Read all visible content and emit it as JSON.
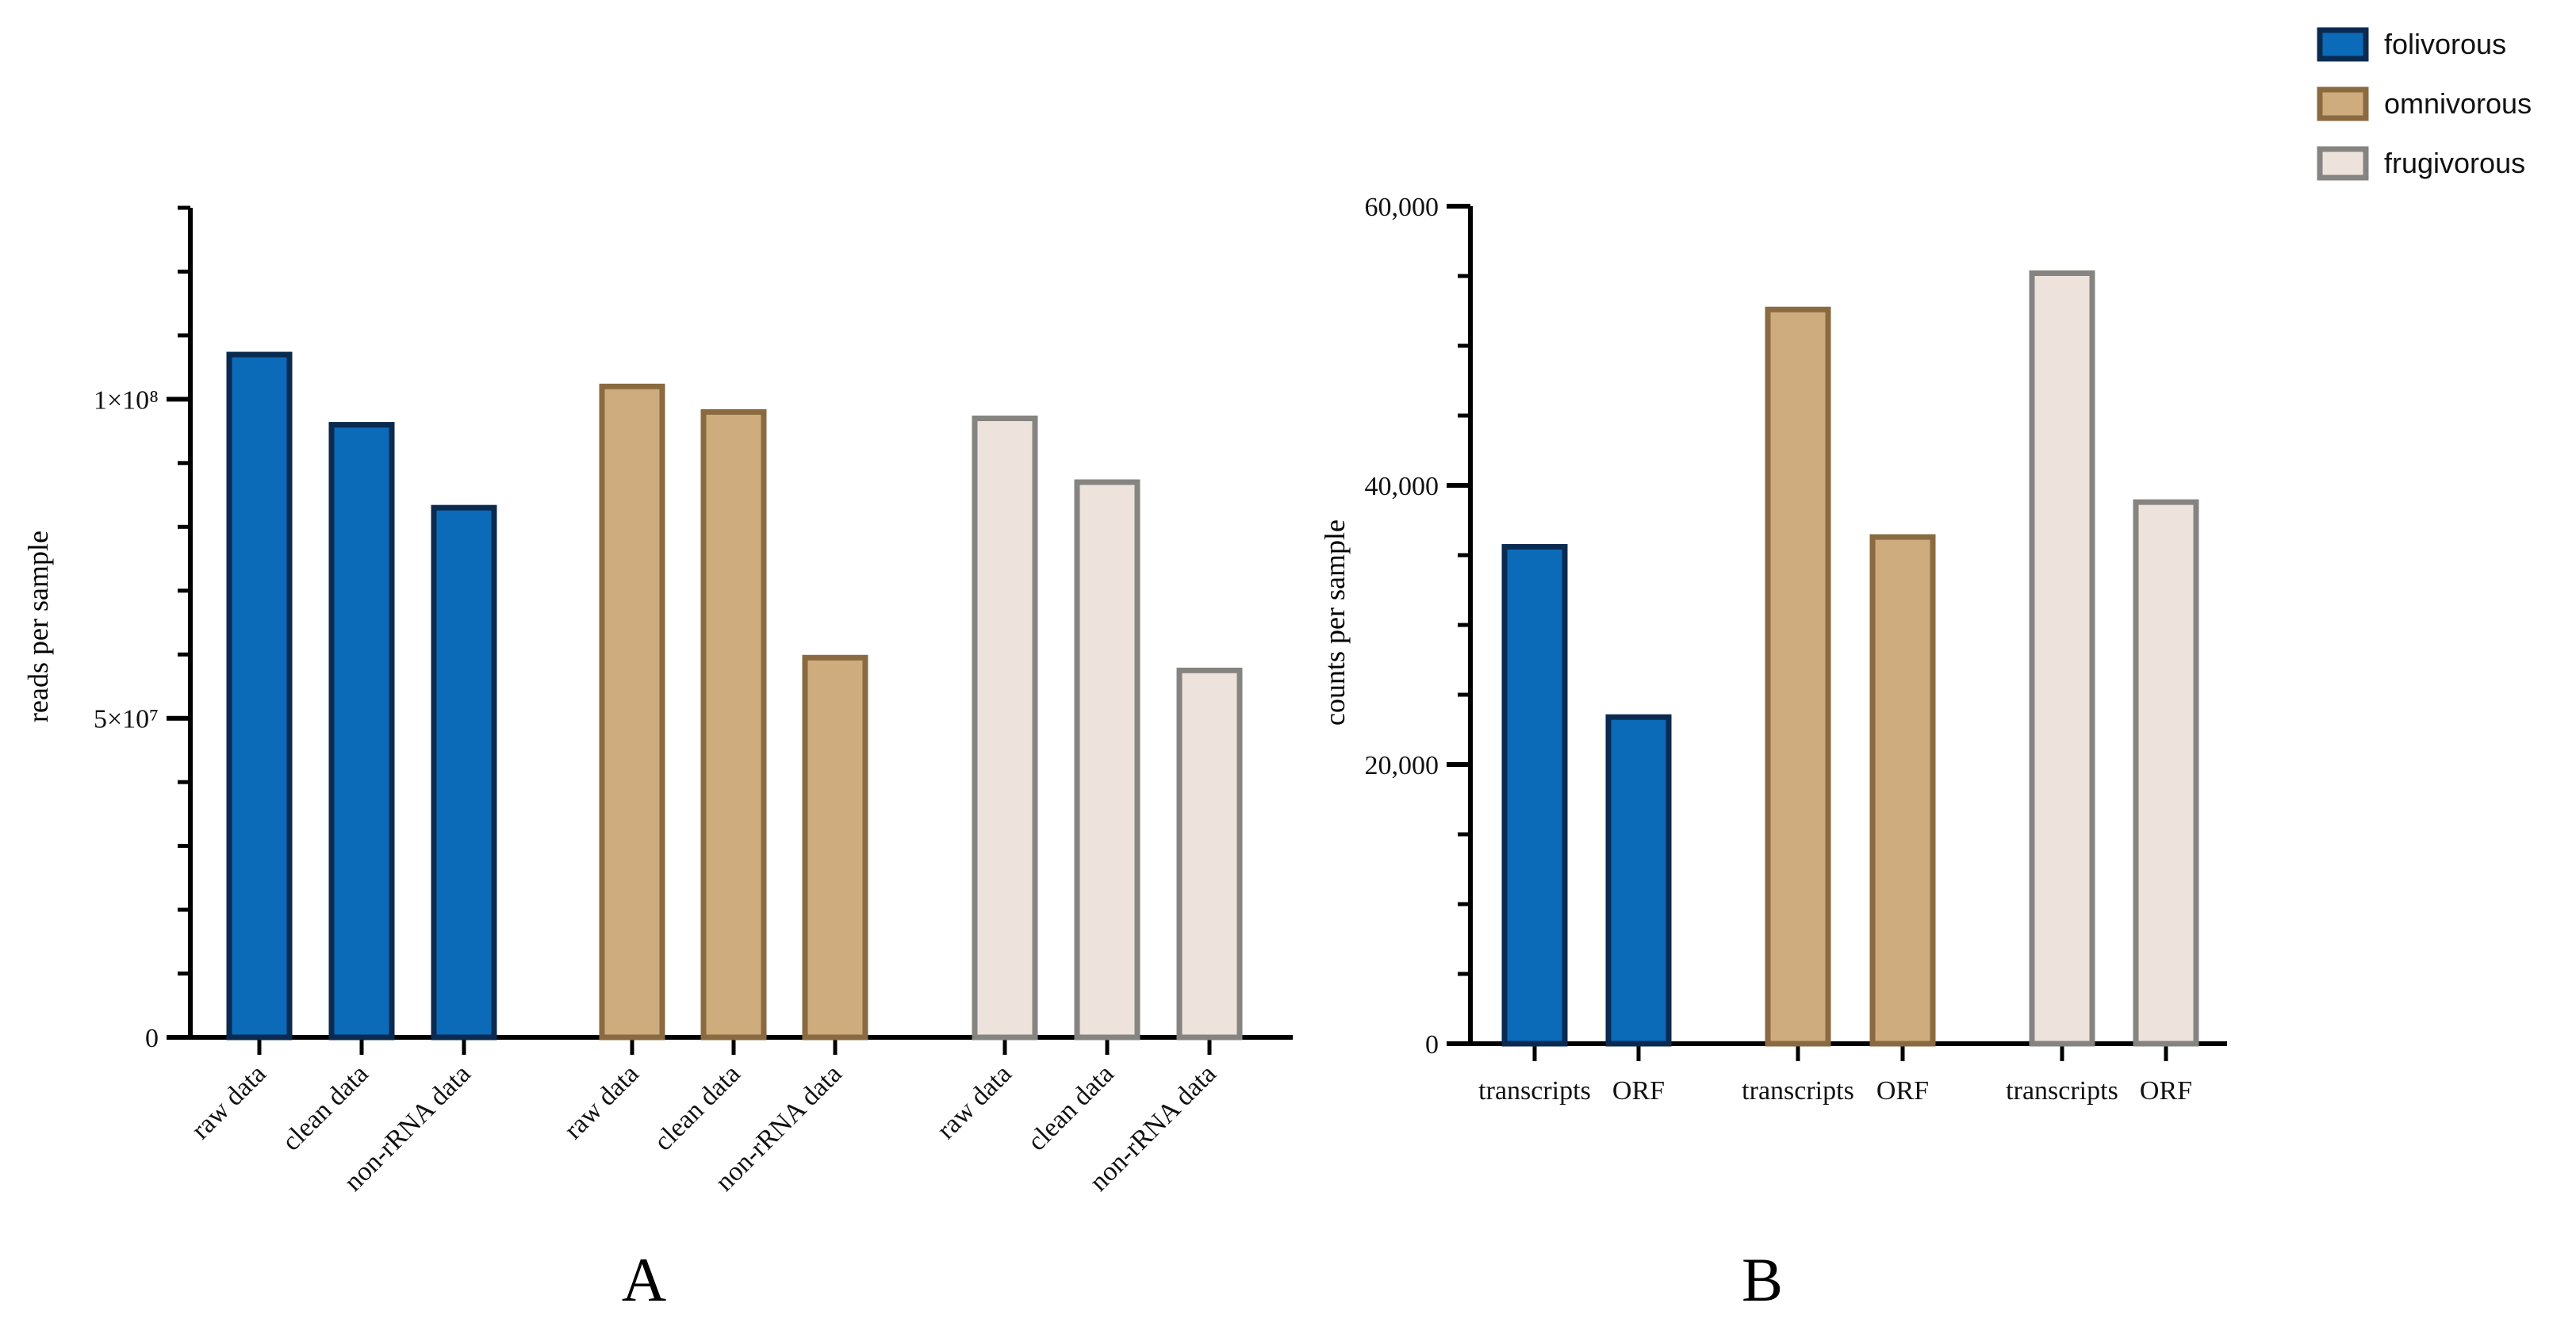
{
  "legend": {
    "placement": "top-right",
    "items": [
      {
        "label": "folivorous",
        "fill": "#0b6bb8",
        "stroke": "#0b2a50"
      },
      {
        "label": "omnivorous",
        "fill": "#cfac7d",
        "stroke": "#8a6a40"
      },
      {
        "label": "frugivorous",
        "fill": "#ede3dc",
        "stroke": "#858480"
      }
    ]
  },
  "chart_data": [
    {
      "type": "bar",
      "panel": "A",
      "ylabel": "reads per sample",
      "ylim": [
        0,
        130000000
      ],
      "yticks": [
        {
          "value": 0,
          "label": "0"
        },
        {
          "value": 50000000,
          "label": "5×10⁷"
        },
        {
          "value": 100000000,
          "label": "1×10⁸"
        }
      ],
      "groups": [
        {
          "name": "folivorous",
          "categories": [
            "raw data",
            "clean data",
            "non-rRNA data"
          ],
          "values": [
            107000000,
            96000000,
            83000000
          ]
        },
        {
          "name": "omnivorous",
          "categories": [
            "raw data",
            "clean data",
            "non-rRNA data"
          ],
          "values": [
            102000000,
            98000000,
            59500000
          ]
        },
        {
          "name": "frugivorous",
          "categories": [
            "raw data",
            "clean data",
            "non-rRNA data"
          ],
          "values": [
            97000000,
            87000000,
            57500000
          ]
        }
      ]
    },
    {
      "type": "bar",
      "panel": "B",
      "ylabel": "counts per sample",
      "ylim": [
        0,
        60000
      ],
      "yticks": [
        {
          "value": 0,
          "label": "0"
        },
        {
          "value": 20000,
          "label": "20,000"
        },
        {
          "value": 40000,
          "label": "40,000"
        },
        {
          "value": 60000,
          "label": "60,000"
        }
      ],
      "groups": [
        {
          "name": "folivorous",
          "categories": [
            "transcripts",
            "ORF"
          ],
          "values": [
            35600,
            23400
          ]
        },
        {
          "name": "omnivorous",
          "categories": [
            "transcripts",
            "ORF"
          ],
          "values": [
            52600,
            36300
          ]
        },
        {
          "name": "frugivorous",
          "categories": [
            "transcripts",
            "ORF"
          ],
          "values": [
            55200,
            38800
          ]
        }
      ]
    }
  ]
}
